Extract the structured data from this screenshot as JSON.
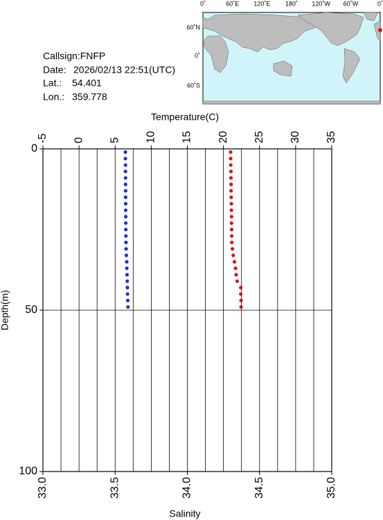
{
  "chart_data": {
    "type": "profile",
    "x_label": "Temperature(C)",
    "x2_label": "Salinity",
    "y_label": "Depth(m)",
    "xlim": [
      -5,
      35
    ],
    "xticks": [
      -5,
      0,
      5,
      10,
      15,
      20,
      25,
      30,
      35
    ],
    "xminorticks": [
      -2.5,
      2.5,
      7.5,
      12.5,
      17.5,
      22.5,
      27.5,
      32.5
    ],
    "x2lim": [
      33,
      35
    ],
    "x2ticks": [
      {
        "value": 33,
        "label": "33.0"
      },
      33.5,
      {
        "value": 34,
        "label": "34.0"
      },
      34.5,
      {
        "value": 35,
        "label": "35.0"
      }
    ],
    "ylim": [
      0,
      100
    ],
    "yticks": [
      0,
      50,
      100
    ],
    "y_inverted": true,
    "grid": true,
    "depth": [
      1,
      3,
      5,
      7,
      9,
      11,
      13,
      15,
      17,
      19,
      21,
      23,
      25,
      27,
      29,
      31,
      33,
      35,
      37,
      39,
      41,
      43,
      45,
      47,
      49
    ],
    "series": [
      {
        "axis": "x",
        "color": "#1f2fd6",
        "values": [
          6.42,
          6.42,
          6.43,
          6.43,
          6.44,
          6.44,
          6.45,
          6.45,
          6.46,
          6.46,
          6.47,
          6.47,
          6.48,
          6.49,
          6.5,
          6.52,
          6.55,
          6.6,
          6.62,
          6.65,
          6.68,
          6.7,
          6.72,
          6.75,
          6.78
        ]
      },
      {
        "axis": "x2",
        "color": "#e01010",
        "values": [
          34.3,
          34.3,
          34.301,
          34.302,
          34.302,
          34.303,
          34.303,
          34.304,
          34.305,
          34.305,
          34.306,
          34.306,
          34.307,
          34.307,
          34.308,
          34.312,
          34.318,
          34.326,
          34.334,
          34.338,
          34.345,
          34.37,
          34.37,
          34.372,
          34.372
        ]
      }
    ]
  },
  "station": {
    "callsign": "Callsign:FNFP",
    "date_label": "Date:",
    "date": "2026/02/13 22:51(UTC)",
    "lat_label": "Lat.:",
    "lat": 54.401,
    "lon_label": "Lon.:",
    "lon": 359.778,
    "marker_color": "#e01010"
  },
  "map": {
    "lon_labels": [
      "0˚",
      "60˚E",
      "120˚E",
      "180˚",
      "120˚W",
      "60˚W",
      "0˚"
    ],
    "lat_labels": [
      "60˚N",
      "0˚",
      "60˚S"
    ]
  }
}
